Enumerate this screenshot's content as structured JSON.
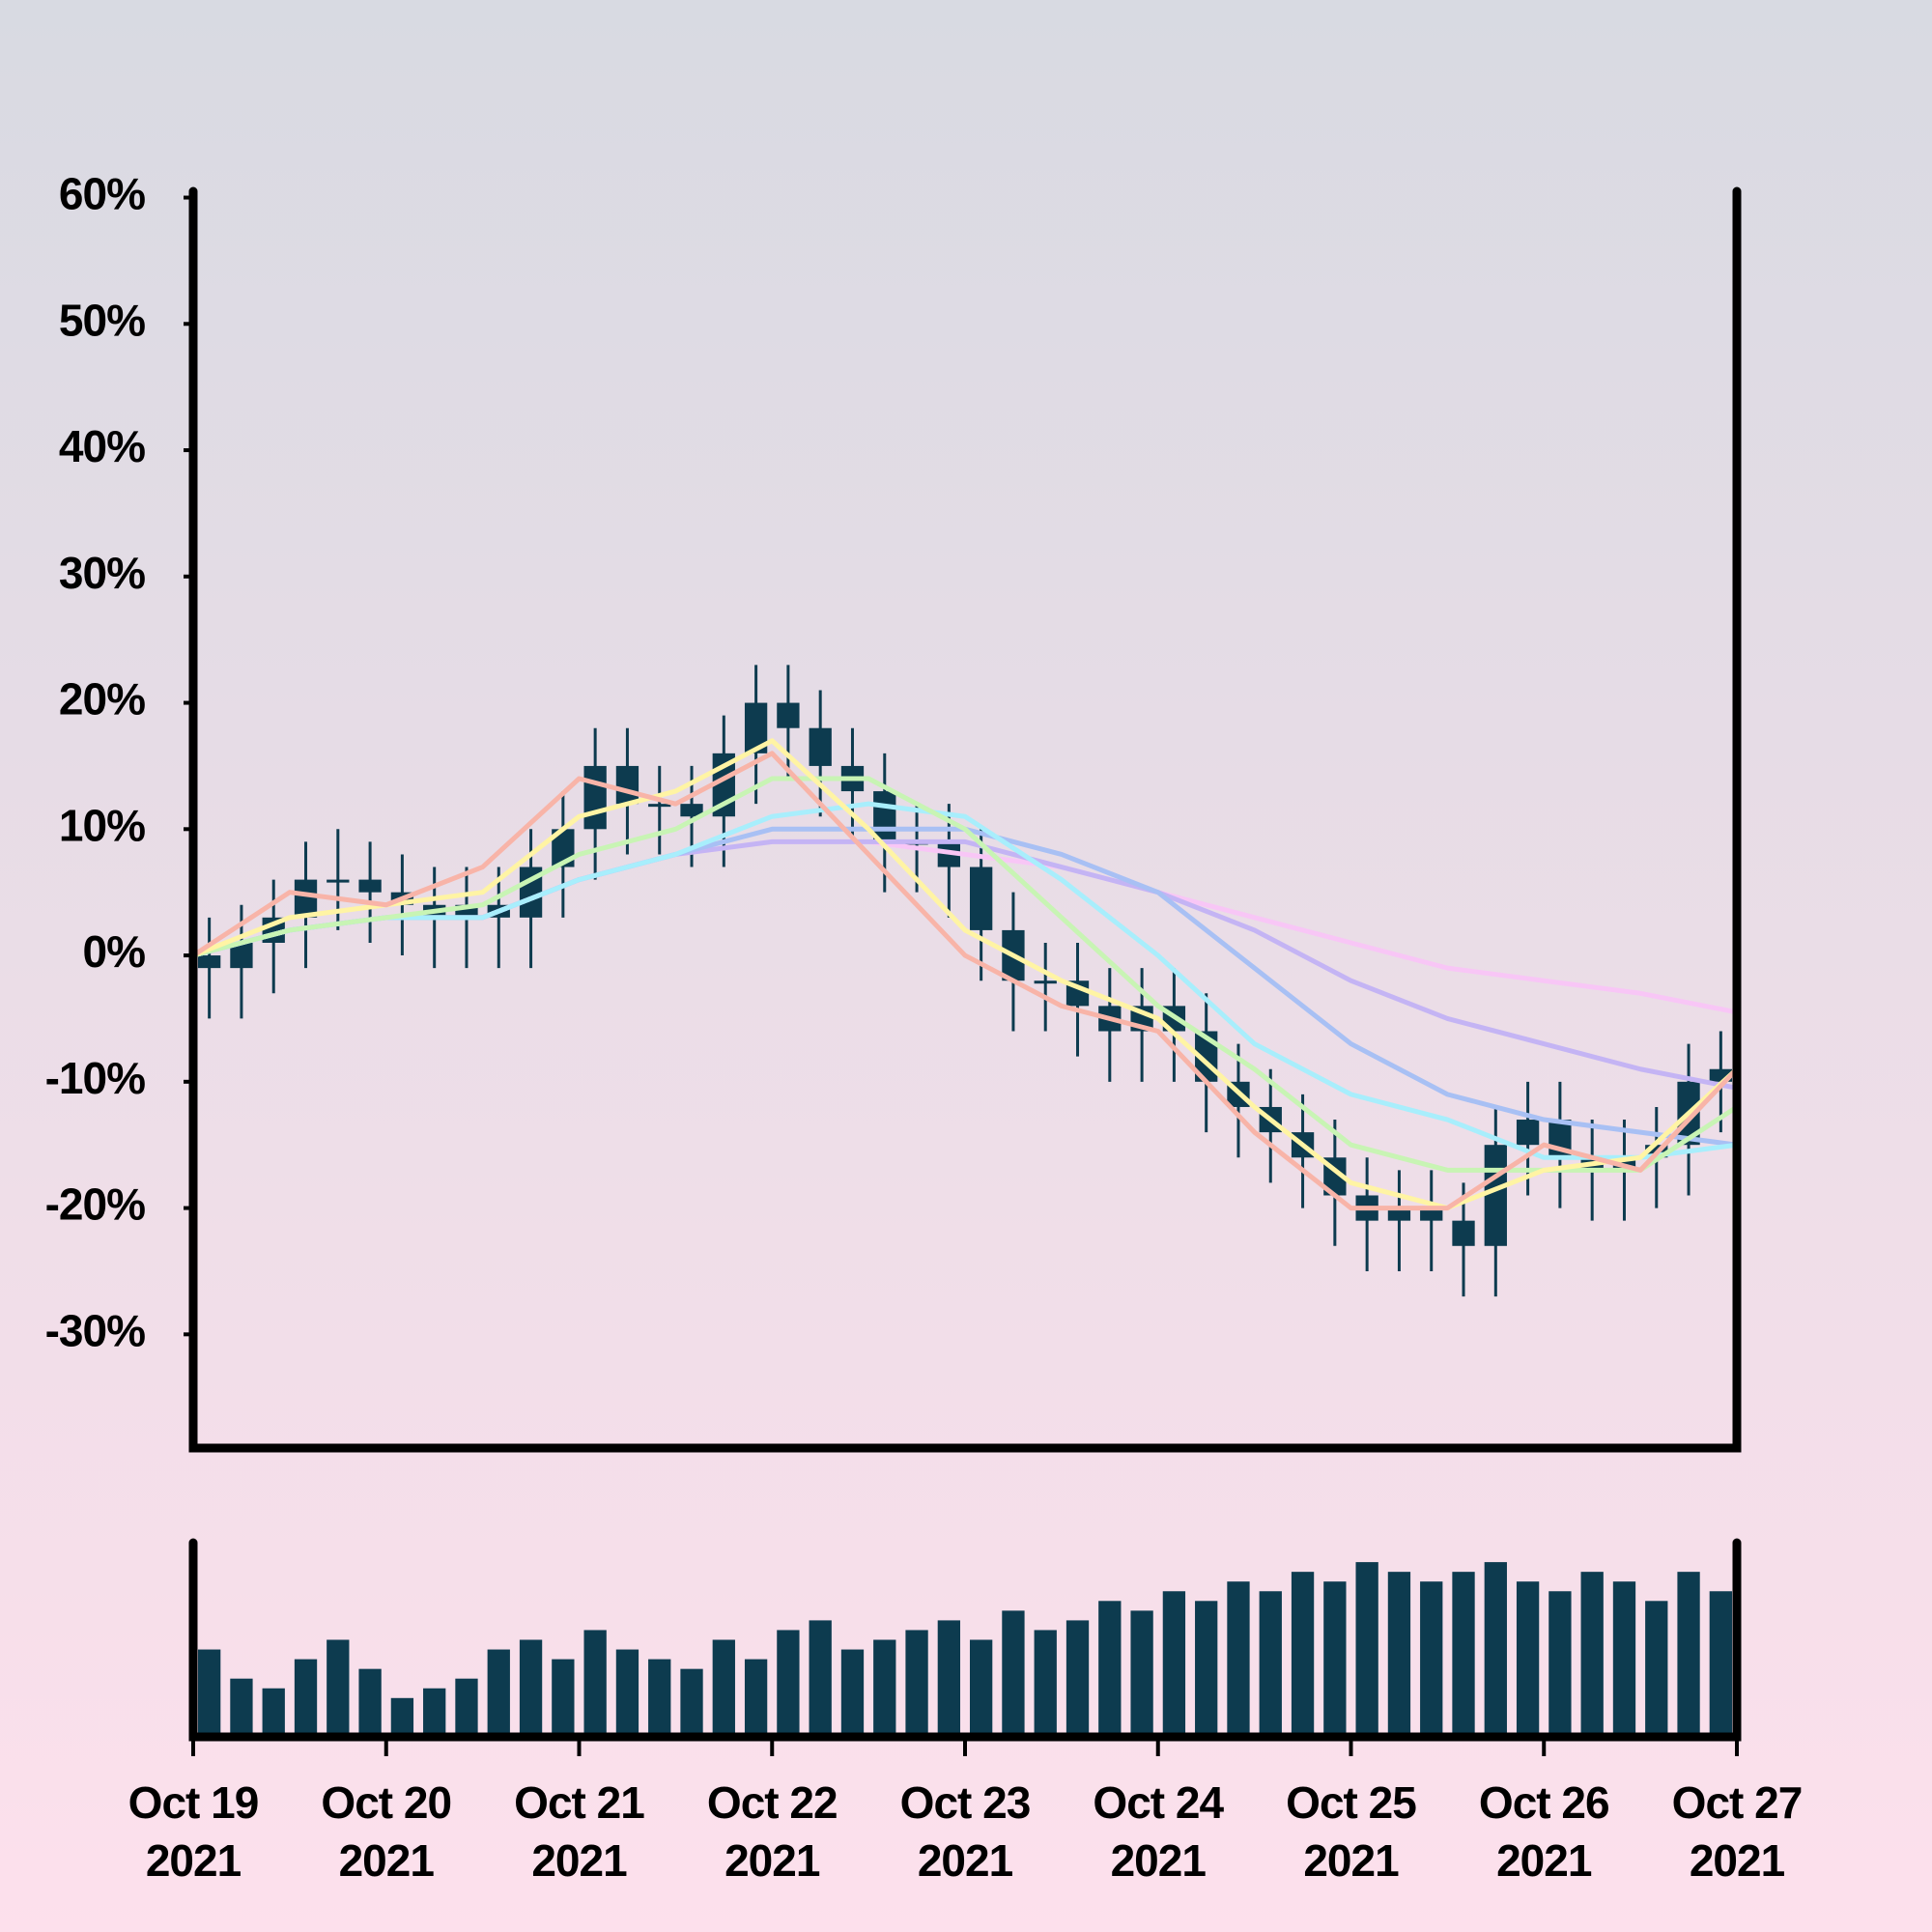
{
  "chart_data": {
    "type": "candlestick",
    "x": [
      "2021-10-19T00:00",
      "2021-10-19T04:00",
      "2021-10-19T08:00",
      "2021-10-19T12:00",
      "2021-10-19T16:00",
      "2021-10-19T20:00",
      "2021-10-20T00:00",
      "2021-10-20T04:00",
      "2021-10-20T08:00",
      "2021-10-20T12:00",
      "2021-10-20T16:00",
      "2021-10-20T20:00",
      "2021-10-21T00:00",
      "2021-10-21T04:00",
      "2021-10-21T08:00",
      "2021-10-21T12:00",
      "2021-10-21T16:00",
      "2021-10-21T20:00",
      "2021-10-22T00:00",
      "2021-10-22T04:00",
      "2021-10-22T08:00",
      "2021-10-22T12:00",
      "2021-10-22T16:00",
      "2021-10-22T20:00",
      "2021-10-23T00:00",
      "2021-10-23T04:00",
      "2021-10-23T08:00",
      "2021-10-23T12:00",
      "2021-10-23T16:00",
      "2021-10-23T20:00",
      "2021-10-24T00:00",
      "2021-10-24T04:00",
      "2021-10-24T08:00",
      "2021-10-24T12:00",
      "2021-10-24T16:00",
      "2021-10-24T20:00",
      "2021-10-25T00:00",
      "2021-10-25T04:00",
      "2021-10-25T08:00",
      "2021-10-25T12:00",
      "2021-10-25T16:00",
      "2021-10-25T20:00",
      "2021-10-26T00:00",
      "2021-10-26T04:00",
      "2021-10-26T08:00",
      "2021-10-26T12:00",
      "2021-10-26T16:00",
      "2021-10-26T20:00"
    ],
    "open": [
      0,
      -1,
      1,
      3,
      6,
      6,
      5,
      4,
      3,
      4,
      3,
      7,
      10,
      15,
      12,
      12,
      11,
      16,
      20,
      18,
      15,
      13,
      9,
      9,
      7,
      2,
      -2,
      -2,
      -4,
      -6,
      -4,
      -6,
      -10,
      -12,
      -14,
      -16,
      -19,
      -21,
      -20,
      -21,
      -23,
      -15,
      -13,
      -16,
      -17,
      -16,
      -15,
      -10
    ],
    "high": [
      3,
      4,
      6,
      9,
      10,
      9,
      8,
      7,
      7,
      7,
      10,
      13,
      18,
      18,
      15,
      15,
      19,
      23,
      23,
      21,
      18,
      16,
      12,
      12,
      10,
      5,
      1,
      1,
      -1,
      -1,
      -1,
      -3,
      -7,
      -9,
      -11,
      -13,
      -16,
      -17,
      -17,
      -18,
      -12,
      -10,
      -10,
      -13,
      -13,
      -12,
      -7,
      -6
    ],
    "low": [
      -5,
      -5,
      -3,
      -1,
      2,
      1,
      0,
      -1,
      -1,
      -1,
      -1,
      3,
      6,
      8,
      8,
      7,
      7,
      12,
      14,
      11,
      9,
      5,
      5,
      3,
      -2,
      -6,
      -6,
      -8,
      -10,
      -10,
      -10,
      -14,
      -16,
      -18,
      -20,
      -23,
      -25,
      -25,
      -25,
      -27,
      -27,
      -19,
      -20,
      -21,
      -21,
      -20,
      -19,
      -14
    ],
    "close": [
      -1,
      1,
      3,
      6,
      6,
      5,
      4,
      3,
      4,
      3,
      7,
      10,
      15,
      12,
      12,
      11,
      16,
      20,
      18,
      15,
      13,
      9,
      9,
      7,
      2,
      -2,
      -2,
      -4,
      -6,
      -4,
      -6,
      -10,
      -12,
      -14,
      -16,
      -19,
      -21,
      -20,
      -21,
      -23,
      -15,
      -13,
      -16,
      -17,
      -16,
      -15,
      -10,
      -9
    ],
    "color": "#0d3b4f",
    "volume": [
      45,
      30,
      25,
      40,
      50,
      35,
      20,
      25,
      30,
      45,
      50,
      40,
      55,
      45,
      40,
      35,
      50,
      40,
      55,
      60,
      45,
      50,
      55,
      60,
      50,
      65,
      55,
      60,
      70,
      65,
      75,
      70,
      80,
      75,
      85,
      80,
      90,
      85,
      80,
      85,
      90,
      80,
      75,
      85,
      80,
      70,
      85,
      75
    ],
    "volume_ylim": [
      0,
      100
    ],
    "ma_x": [
      "2021-10-19T00:00",
      "2021-10-19T12:00",
      "2021-10-20T00:00",
      "2021-10-20T12:00",
      "2021-10-21T00:00",
      "2021-10-21T12:00",
      "2021-10-22T00:00",
      "2021-10-22T12:00",
      "2021-10-23T00:00",
      "2021-10-23T12:00",
      "2021-10-24T00:00",
      "2021-10-24T12:00",
      "2021-10-25T00:00",
      "2021-10-25T12:00",
      "2021-10-26T00:00",
      "2021-10-26T12:00",
      "2021-10-27T00:00"
    ],
    "ma_lines": [
      {
        "color": "#f8c6f6",
        "values": [
          0,
          2,
          3,
          3,
          6,
          8,
          9,
          9,
          8,
          7,
          5,
          3,
          1,
          -1,
          -2,
          -3,
          -4.5
        ]
      },
      {
        "color": "#c4b4f4",
        "values": [
          0,
          2,
          3,
          3,
          6,
          8,
          9,
          9,
          9,
          7,
          5,
          2,
          -2,
          -5,
          -7,
          -9,
          -10.5
        ]
      },
      {
        "color": "#a8c0f4",
        "values": [
          0,
          2,
          3,
          3,
          6,
          8,
          10,
          10,
          10,
          8,
          5,
          -1,
          -7,
          -11,
          -13,
          -14,
          -15
        ]
      },
      {
        "color": "#a8eefc",
        "values": [
          0,
          2,
          3,
          3,
          6,
          8,
          11,
          12,
          11,
          6,
          0,
          -7,
          -11,
          -13,
          -16,
          -16,
          -15
        ]
      },
      {
        "color": "#c8f4b4",
        "values": [
          0,
          2,
          3,
          4,
          8,
          10,
          14,
          14,
          10,
          3,
          -4,
          -9,
          -15,
          -17,
          -17,
          -17,
          -12
        ]
      },
      {
        "color": "#fff4a4",
        "values": [
          0,
          3,
          4,
          5,
          11,
          13,
          17,
          10,
          2,
          -2,
          -5,
          -12,
          -18,
          -20,
          -17,
          -16,
          -9
        ]
      },
      {
        "color": "#f8b4a8",
        "values": [
          0,
          5,
          4,
          7,
          14,
          12,
          16,
          8,
          0,
          -4,
          -6,
          -14,
          -20,
          -20,
          -15,
          -17,
          -9
        ]
      }
    ],
    "xlim": [
      "2021-10-19T00:00",
      "2021-10-27T00:00"
    ],
    "xticks": [
      {
        "value": "2021-10-19T00:00",
        "label": [
          "Oct 19",
          "2021"
        ]
      },
      {
        "value": "2021-10-20T00:00",
        "label": [
          "Oct 20",
          "2021"
        ]
      },
      {
        "value": "2021-10-21T00:00",
        "label": [
          "Oct 21",
          "2021"
        ]
      },
      {
        "value": "2021-10-22T00:00",
        "label": [
          "Oct 22",
          "2021"
        ]
      },
      {
        "value": "2021-10-23T00:00",
        "label": [
          "Oct 23",
          "2021"
        ]
      },
      {
        "value": "2021-10-24T00:00",
        "label": [
          "Oct 24",
          "2021"
        ]
      },
      {
        "value": "2021-10-25T00:00",
        "label": [
          "Oct 25",
          "2021"
        ]
      },
      {
        "value": "2021-10-26T00:00",
        "label": [
          "Oct 26",
          "2021"
        ]
      },
      {
        "value": "2021-10-27T00:00",
        "label": [
          "Oct 27",
          "2021"
        ]
      }
    ],
    "ylim": [
      -39,
      60.5
    ],
    "yticks": [
      {
        "value": 60,
        "label": "60%"
      },
      {
        "value": 50,
        "label": "50%"
      },
      {
        "value": 40,
        "label": "40%"
      },
      {
        "value": 30,
        "label": "30%"
      },
      {
        "value": 20,
        "label": "20%"
      },
      {
        "value": 10,
        "label": "10%"
      },
      {
        "value": 0,
        "label": "0%"
      },
      {
        "value": -10,
        "label": "-10%"
      },
      {
        "value": -20,
        "label": "-20%"
      },
      {
        "value": -30,
        "label": "-30%"
      }
    ]
  }
}
